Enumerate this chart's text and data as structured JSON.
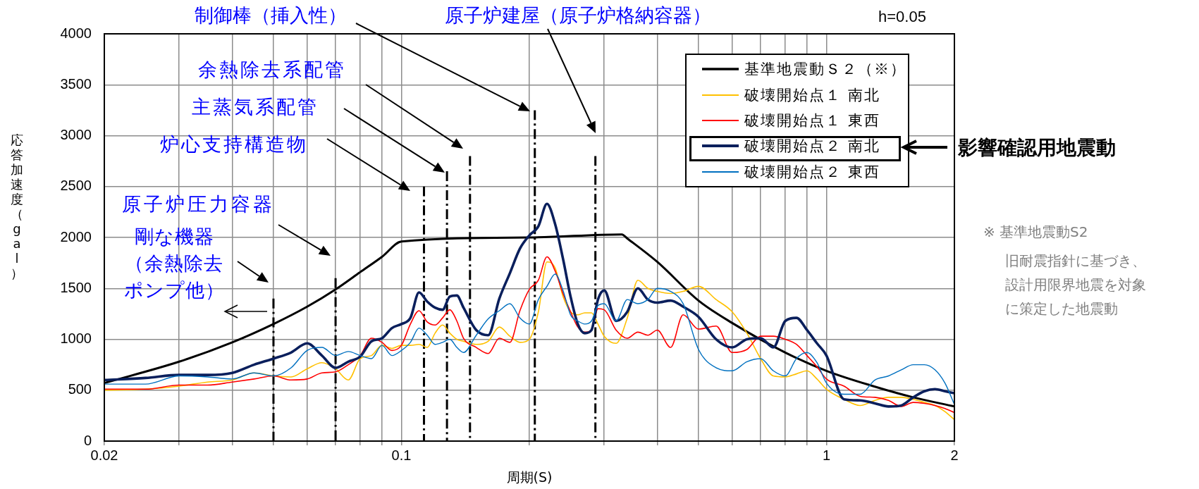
{
  "chart_data": {
    "type": "line",
    "title": "h=0.05",
    "xlabel": "周期(S)",
    "ylabel": "応答加速度（gal）",
    "log": "x",
    "grid": true,
    "legend": "top right",
    "marker": "none",
    "xlim": [
      0.02,
      2
    ],
    "xticks": [
      0.02,
      {
        "value": 0.03,
        "label": null
      },
      {
        "value": 0.04,
        "label": null
      },
      {
        "value": 0.05,
        "label": null
      },
      {
        "value": 0.06,
        "label": null
      },
      {
        "value": 0.07,
        "label": null
      },
      {
        "value": 0.08,
        "label": null
      },
      {
        "value": 0.09,
        "label": null
      },
      0.1,
      {
        "value": 0.2,
        "label": null
      },
      {
        "value": 0.3,
        "label": null
      },
      {
        "value": 0.4,
        "label": null
      },
      {
        "value": 0.5,
        "label": null
      },
      {
        "value": 0.6,
        "label": null
      },
      {
        "value": 0.7,
        "label": null
      },
      {
        "value": 0.8,
        "label": null
      },
      {
        "value": 0.9,
        "label": null
      },
      1,
      2
    ],
    "ylim": [
      0,
      4000
    ],
    "yticks": [
      0,
      500,
      1000,
      1500,
      2000,
      2500,
      3000,
      3500,
      4000
    ],
    "x": [
      0.02,
      0.025,
      0.03,
      0.035,
      0.04,
      0.045,
      0.05,
      0.055,
      0.06,
      0.065,
      0.07,
      0.075,
      0.08,
      0.085,
      0.09,
      0.095,
      0.1,
      0.105,
      0.11,
      0.115,
      0.12,
      0.125,
      0.13,
      0.135,
      0.14,
      0.15,
      0.16,
      0.17,
      0.18,
      0.19,
      0.2,
      0.21,
      0.22,
      0.23,
      0.24,
      0.25,
      0.26,
      0.27,
      0.28,
      0.29,
      0.3,
      0.32,
      0.34,
      0.36,
      0.38,
      0.4,
      0.43,
      0.46,
      0.5,
      0.55,
      0.6,
      0.65,
      0.7,
      0.75,
      0.8,
      0.85,
      0.9,
      0.95,
      1,
      1.1,
      1.2,
      1.3,
      1.4,
      1.5,
      1.6,
      1.7,
      1.8,
      1.9,
      2
    ],
    "series": [
      {
        "name": "基準地震動Ｓ２（※）",
        "color": "#000000",
        "x": [
          0.02,
          0.03,
          0.04,
          0.05,
          0.06,
          0.07,
          0.08,
          0.09,
          0.1,
          0.2,
          0.33,
          0.34,
          0.4,
          0.5,
          0.6,
          0.8,
          1,
          1.3,
          1.6,
          2
        ],
        "values": [
          570,
          780,
          970,
          1150,
          1320,
          1490,
          1660,
          1810,
          1960,
          2000,
          2030,
          1990,
          1760,
          1380,
          1160,
          870,
          690,
          535,
          430,
          340
        ]
      },
      {
        "name": "破壊開始点１ 南北",
        "color": "#ffc000",
        "values": [
          500,
          510,
          540,
          580,
          600,
          670,
          640,
          630,
          710,
          770,
          710,
          600,
          810,
          840,
          940,
          910,
          940,
          940,
          950,
          920,
          1060,
          1140,
          1060,
          1000,
          980,
          950,
          980,
          1120,
          1030,
          970,
          1000,
          1270,
          1760,
          1700,
          1420,
          1270,
          1240,
          1260,
          1260,
          1150,
          1030,
          960,
          1210,
          1580,
          1500,
          1470,
          1450,
          1470,
          1520,
          1390,
          1270,
          1060,
          810,
          640,
          630,
          660,
          690,
          610,
          510,
          410,
          350,
          400,
          430,
          430,
          410,
          380,
          350,
          290,
          210
        ]
      },
      {
        "name": "破壊開始点１ 東西",
        "color": "#ff0000",
        "values": [
          510,
          510,
          550,
          550,
          580,
          610,
          640,
          600,
          610,
          670,
          680,
          750,
          840,
          1010,
          970,
          890,
          940,
          1150,
          1280,
          1170,
          1140,
          1210,
          1290,
          1180,
          1010,
          920,
          860,
          1010,
          970,
          1280,
          1490,
          1580,
          1810,
          1670,
          1450,
          1270,
          1120,
          1070,
          1090,
          1300,
          1290,
          1090,
          1010,
          1070,
          1040,
          1090,
          920,
          1240,
          1100,
          1130,
          870,
          900,
          1030,
          1030,
          1000,
          950,
          840,
          730,
          610,
          540,
          440,
          430,
          400,
          340,
          380,
          370,
          350,
          320,
          280
        ]
      },
      {
        "name": "破壊開始点２ 南北",
        "color": "#0a1f5c",
        "values": [
          600,
          620,
          650,
          650,
          670,
          750,
          810,
          870,
          960,
          840,
          720,
          780,
          830,
          980,
          1010,
          1110,
          1150,
          1210,
          1460,
          1370,
          1310,
          1290,
          1420,
          1430,
          1310,
          1090,
          1040,
          1400,
          1650,
          1890,
          2020,
          2110,
          2330,
          2130,
          1790,
          1420,
          1150,
          1060,
          1090,
          1390,
          1480,
          1180,
          1270,
          1500,
          1390,
          1360,
          1380,
          1320,
          1220,
          1000,
          920,
          1000,
          1010,
          920,
          1180,
          1210,
          1090,
          960,
          840,
          410,
          400,
          370,
          340,
          350,
          430,
          490,
          510,
          490,
          470
        ]
      },
      {
        "name": "破壊開始点２ 東西",
        "color": "#0070c0",
        "values": [
          560,
          560,
          640,
          630,
          610,
          670,
          640,
          720,
          890,
          920,
          840,
          880,
          840,
          810,
          940,
          840,
          890,
          970,
          1110,
          1040,
          950,
          970,
          1000,
          920,
          870,
          1040,
          1200,
          1280,
          1350,
          1210,
          1150,
          1390,
          1520,
          1640,
          1480,
          1240,
          1180,
          1150,
          1180,
          1330,
          1350,
          1180,
          1390,
          1350,
          1390,
          1500,
          1470,
          1350,
          900,
          720,
          690,
          780,
          810,
          690,
          640,
          810,
          870,
          770,
          570,
          460,
          460,
          600,
          640,
          700,
          750,
          750,
          700,
          570,
          360
        ]
      },
      {
        "color": "#000000",
        "line_style": "dashed",
        "x": [
          0.05,
          0.05
        ],
        "values": [
          1400,
          0
        ]
      },
      {
        "color": "#000000",
        "line_style": "dashed",
        "x": [
          0.07,
          0.07
        ],
        "values": [
          1600,
          0
        ]
      },
      {
        "color": "#000000",
        "line_style": "dashed",
        "x": [
          0.113,
          0.113
        ],
        "values": [
          2500,
          0
        ]
      },
      {
        "color": "#000000",
        "line_style": "dashed",
        "x": [
          0.128,
          0.128
        ],
        "values": [
          2650,
          0
        ]
      },
      {
        "color": "#000000",
        "line_style": "dashed",
        "x": [
          0.145,
          0.145
        ],
        "values": [
          2800,
          0
        ]
      },
      {
        "color": "#000000",
        "line_style": "dashed",
        "x": [
          0.206,
          0.206
        ],
        "values": [
          3250,
          0
        ]
      },
      {
        "color": "#000000",
        "line_style": "dashed",
        "x": [
          0.286,
          0.286
        ],
        "values": [
          2800,
          0
        ]
      }
    ],
    "annotations": [
      "制御棒（挿入性）",
      "原子炉建屋（原子炉格納容器）",
      "余熱除去系配管",
      "主蒸気系配管",
      "炉心支持構造物",
      "原子炉圧力容器",
      "剛な機器（余熱除去ポンプ他）",
      "影響確認用地震動",
      "※ 基準地震動S2",
      "旧耐震指針に基づき、設計用限界地震を対象に策定した地震動"
    ]
  }
}
